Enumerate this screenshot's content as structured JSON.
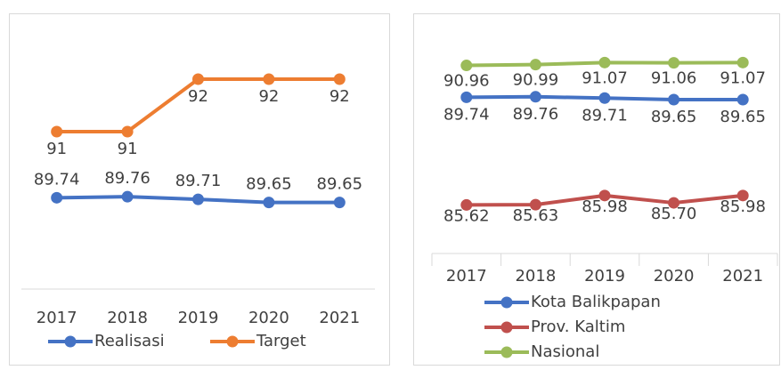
{
  "chart_data": [
    {
      "type": "line",
      "categories": [
        "2017",
        "2018",
        "2019",
        "2020",
        "2021"
      ],
      "ylim": [
        88,
        93
      ],
      "series": [
        {
          "name": "Realisasi",
          "color": "#4472c4",
          "values": [
            89.74,
            89.76,
            89.71,
            89.65,
            89.65
          ]
        },
        {
          "name": "Target",
          "color": "#ed7d31",
          "values": [
            91,
            91,
            92,
            92,
            92
          ]
        }
      ],
      "legend": "bottom"
    },
    {
      "type": "line",
      "categories": [
        "2017",
        "2018",
        "2019",
        "2020",
        "2021"
      ],
      "ylim": [
        84,
        92
      ],
      "series": [
        {
          "name": "Kota Balikpapan",
          "color": "#4472c4",
          "values": [
            89.74,
            89.76,
            89.71,
            89.65,
            89.65
          ]
        },
        {
          "name": "Prov. Kaltim",
          "color": "#c0504d",
          "values": [
            85.62,
            85.63,
            85.98,
            85.7,
            85.98
          ],
          "value_labels": [
            "85.62",
            "85.63",
            "85.98",
            "85.70",
            "85.98"
          ]
        },
        {
          "name": "Nasional",
          "color": "#9bbb59",
          "values": [
            90.96,
            90.99,
            91.07,
            91.06,
            91.07
          ]
        }
      ],
      "legend": "bottom"
    }
  ]
}
